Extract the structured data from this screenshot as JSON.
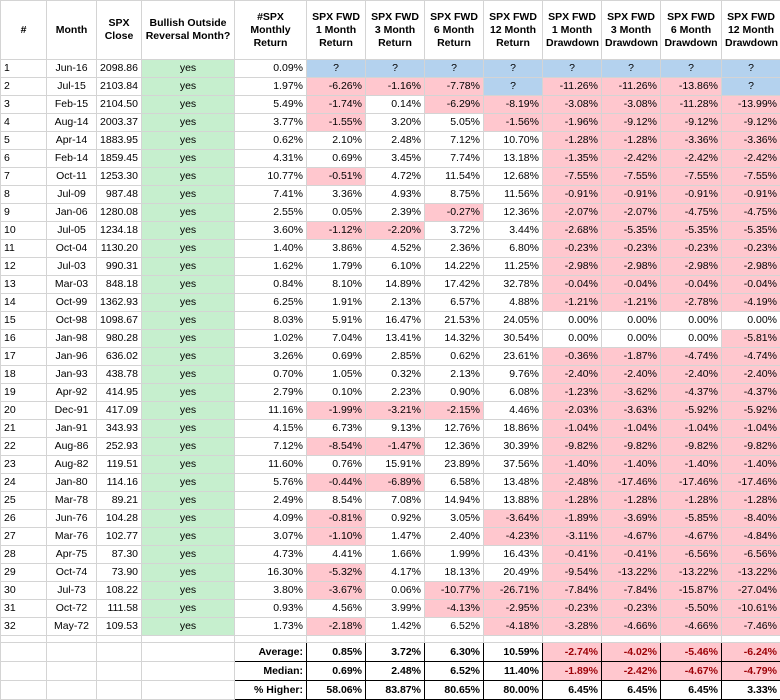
{
  "headers": [
    "#",
    "Month",
    "SPX Close",
    "Bullish Outside Reversal Month?",
    "#SPX Monthly Return",
    "SPX FWD 1 Month Return",
    "SPX FWD 3 Month Return",
    "SPX FWD 6 Month Return",
    "SPX FWD 12 Month Return",
    "SPX FWD 1 Month Drawdown",
    "SPX FWD 3 Month Drawdown",
    "SPX FWD 6 Month Drawdown",
    "SPX FWD 12 Month Drawdown"
  ],
  "rows": [
    [
      "1",
      "Jun-16",
      "2098.86",
      "yes",
      "0.09%",
      "?",
      "?",
      "?",
      "?",
      "?",
      "?",
      "?",
      "?"
    ],
    [
      "2",
      "Jul-15",
      "2103.84",
      "yes",
      "1.97%",
      "-6.26%",
      "-1.16%",
      "-7.78%",
      "?",
      "-11.26%",
      "-11.26%",
      "-13.86%",
      "?"
    ],
    [
      "3",
      "Feb-15",
      "2104.50",
      "yes",
      "5.49%",
      "-1.74%",
      "0.14%",
      "-6.29%",
      "-8.19%",
      "-3.08%",
      "-3.08%",
      "-11.28%",
      "-13.99%"
    ],
    [
      "4",
      "Aug-14",
      "2003.37",
      "yes",
      "3.77%",
      "-1.55%",
      "3.20%",
      "5.05%",
      "-1.56%",
      "-1.96%",
      "-9.12%",
      "-9.12%",
      "-9.12%"
    ],
    [
      "5",
      "Apr-14",
      "1883.95",
      "yes",
      "0.62%",
      "2.10%",
      "2.48%",
      "7.12%",
      "10.70%",
      "-1.28%",
      "-1.28%",
      "-3.36%",
      "-3.36%"
    ],
    [
      "6",
      "Feb-14",
      "1859.45",
      "yes",
      "4.31%",
      "0.69%",
      "3.45%",
      "7.74%",
      "13.18%",
      "-1.35%",
      "-2.42%",
      "-2.42%",
      "-2.42%"
    ],
    [
      "7",
      "Oct-11",
      "1253.30",
      "yes",
      "10.77%",
      "-0.51%",
      "4.72%",
      "11.54%",
      "12.68%",
      "-7.55%",
      "-7.55%",
      "-7.55%",
      "-7.55%"
    ],
    [
      "8",
      "Jul-09",
      "987.48",
      "yes",
      "7.41%",
      "3.36%",
      "4.93%",
      "8.75%",
      "11.56%",
      "-0.91%",
      "-0.91%",
      "-0.91%",
      "-0.91%"
    ],
    [
      "9",
      "Jan-06",
      "1280.08",
      "yes",
      "2.55%",
      "0.05%",
      "2.39%",
      "-0.27%",
      "12.36%",
      "-2.07%",
      "-2.07%",
      "-4.75%",
      "-4.75%"
    ],
    [
      "10",
      "Jul-05",
      "1234.18",
      "yes",
      "3.60%",
      "-1.12%",
      "-2.20%",
      "3.72%",
      "3.44%",
      "-2.68%",
      "-5.35%",
      "-5.35%",
      "-5.35%"
    ],
    [
      "11",
      "Oct-04",
      "1130.20",
      "yes",
      "1.40%",
      "3.86%",
      "4.52%",
      "2.36%",
      "6.80%",
      "-0.23%",
      "-0.23%",
      "-0.23%",
      "-0.23%"
    ],
    [
      "12",
      "Jul-03",
      "990.31",
      "yes",
      "1.62%",
      "1.79%",
      "6.10%",
      "14.22%",
      "11.25%",
      "-2.98%",
      "-2.98%",
      "-2.98%",
      "-2.98%"
    ],
    [
      "13",
      "Mar-03",
      "848.18",
      "yes",
      "0.84%",
      "8.10%",
      "14.89%",
      "17.42%",
      "32.78%",
      "-0.04%",
      "-0.04%",
      "-0.04%",
      "-0.04%"
    ],
    [
      "14",
      "Oct-99",
      "1362.93",
      "yes",
      "6.25%",
      "1.91%",
      "2.13%",
      "6.57%",
      "4.88%",
      "-1.21%",
      "-1.21%",
      "-2.78%",
      "-4.19%"
    ],
    [
      "15",
      "Oct-98",
      "1098.67",
      "yes",
      "8.03%",
      "5.91%",
      "16.47%",
      "21.53%",
      "24.05%",
      "0.00%",
      "0.00%",
      "0.00%",
      "0.00%"
    ],
    [
      "16",
      "Jan-98",
      "980.28",
      "yes",
      "1.02%",
      "7.04%",
      "13.41%",
      "14.32%",
      "30.54%",
      "0.00%",
      "0.00%",
      "0.00%",
      "-5.81%"
    ],
    [
      "17",
      "Jan-96",
      "636.02",
      "yes",
      "3.26%",
      "0.69%",
      "2.85%",
      "0.62%",
      "23.61%",
      "-0.36%",
      "-1.87%",
      "-4.74%",
      "-4.74%"
    ],
    [
      "18",
      "Jan-93",
      "438.78",
      "yes",
      "0.70%",
      "1.05%",
      "0.32%",
      "2.13%",
      "9.76%",
      "-2.40%",
      "-2.40%",
      "-2.40%",
      "-2.40%"
    ],
    [
      "19",
      "Apr-92",
      "414.95",
      "yes",
      "2.79%",
      "0.10%",
      "2.23%",
      "0.90%",
      "6.08%",
      "-1.23%",
      "-3.62%",
      "-4.37%",
      "-4.37%"
    ],
    [
      "20",
      "Dec-91",
      "417.09",
      "yes",
      "11.16%",
      "-1.99%",
      "-3.21%",
      "-2.15%",
      "4.46%",
      "-2.03%",
      "-3.63%",
      "-5.92%",
      "-5.92%"
    ],
    [
      "21",
      "Jan-91",
      "343.93",
      "yes",
      "4.15%",
      "6.73%",
      "9.13%",
      "12.76%",
      "18.86%",
      "-1.04%",
      "-1.04%",
      "-1.04%",
      "-1.04%"
    ],
    [
      "22",
      "Aug-86",
      "252.93",
      "yes",
      "7.12%",
      "-8.54%",
      "-1.47%",
      "12.36%",
      "30.39%",
      "-9.82%",
      "-9.82%",
      "-9.82%",
      "-9.82%"
    ],
    [
      "23",
      "Aug-82",
      "119.51",
      "yes",
      "11.60%",
      "0.76%",
      "15.91%",
      "23.89%",
      "37.56%",
      "-1.40%",
      "-1.40%",
      "-1.40%",
      "-1.40%"
    ],
    [
      "24",
      "Jan-80",
      "114.16",
      "yes",
      "5.76%",
      "-0.44%",
      "-6.89%",
      "6.58%",
      "13.48%",
      "-2.48%",
      "-17.46%",
      "-17.46%",
      "-17.46%"
    ],
    [
      "25",
      "Mar-78",
      "89.21",
      "yes",
      "2.49%",
      "8.54%",
      "7.08%",
      "14.94%",
      "13.88%",
      "-1.28%",
      "-1.28%",
      "-1.28%",
      "-1.28%"
    ],
    [
      "26",
      "Jun-76",
      "104.28",
      "yes",
      "4.09%",
      "-0.81%",
      "0.92%",
      "3.05%",
      "-3.64%",
      "-1.89%",
      "-3.69%",
      "-5.85%",
      "-8.40%"
    ],
    [
      "27",
      "Mar-76",
      "102.77",
      "yes",
      "3.07%",
      "-1.10%",
      "1.47%",
      "2.40%",
      "-4.23%",
      "-3.11%",
      "-4.67%",
      "-4.67%",
      "-4.84%"
    ],
    [
      "28",
      "Apr-75",
      "87.30",
      "yes",
      "4.73%",
      "4.41%",
      "1.66%",
      "1.99%",
      "16.43%",
      "-0.41%",
      "-0.41%",
      "-6.56%",
      "-6.56%"
    ],
    [
      "29",
      "Oct-74",
      "73.90",
      "yes",
      "16.30%",
      "-5.32%",
      "4.17%",
      "18.13%",
      "20.49%",
      "-9.54%",
      "-13.22%",
      "-13.22%",
      "-13.22%"
    ],
    [
      "30",
      "Jul-73",
      "108.22",
      "yes",
      "3.80%",
      "-3.67%",
      "0.06%",
      "-10.77%",
      "-26.71%",
      "-7.84%",
      "-7.84%",
      "-15.87%",
      "-27.04%"
    ],
    [
      "31",
      "Oct-72",
      "111.58",
      "yes",
      "0.93%",
      "4.56%",
      "3.99%",
      "-4.13%",
      "-2.95%",
      "-0.23%",
      "-0.23%",
      "-5.50%",
      "-10.61%"
    ],
    [
      "32",
      "May-72",
      "109.53",
      "yes",
      "1.73%",
      "-2.18%",
      "1.42%",
      "6.52%",
      "-4.18%",
      "-3.28%",
      "-4.66%",
      "-4.66%",
      "-7.46%"
    ]
  ],
  "summary": [
    {
      "label": "Average:",
      "values": [
        "0.85%",
        "3.72%",
        "6.30%",
        "10.59%",
        "-2.74%",
        "-4.02%",
        "-5.46%",
        "-6.24%"
      ]
    },
    {
      "label": "Median:",
      "values": [
        "0.69%",
        "2.48%",
        "6.52%",
        "11.40%",
        "-1.89%",
        "-2.42%",
        "-4.67%",
        "-4.79%"
      ]
    },
    {
      "label": "% Higher:",
      "values": [
        "58.06%",
        "83.87%",
        "80.65%",
        "80.00%",
        "6.45%",
        "6.45%",
        "6.45%",
        "3.33%"
      ]
    }
  ],
  "colors": {
    "positive_fill": "#c6efce",
    "negative_fill": "#ffc7ce",
    "pending_fill": "#b4d2ee"
  }
}
